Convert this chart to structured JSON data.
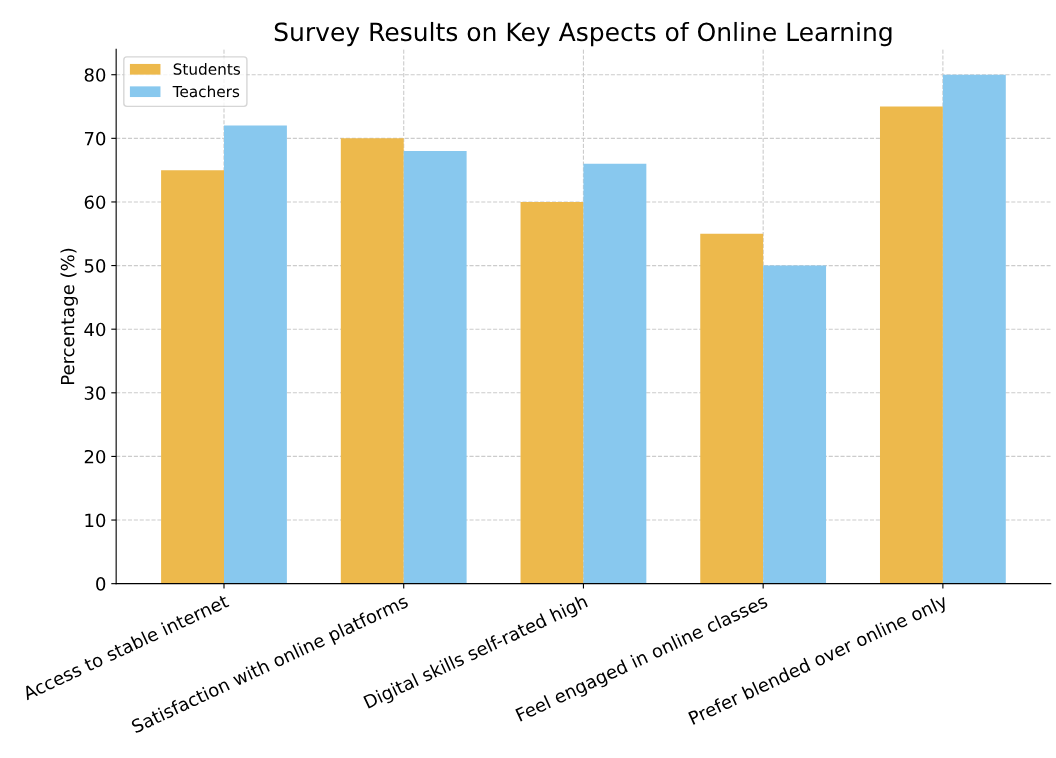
{
  "chart_data": {
    "type": "bar",
    "title": "Survey Results on Key Aspects of Online Learning",
    "ylabel": "Percentage (%)",
    "categories": [
      "Access to stable internet",
      "Satisfaction with online platforms",
      "Digital skills self-rated high",
      "Feel engaged in online classes",
      "Prefer blended over online only"
    ],
    "series": [
      {
        "name": "Students",
        "color": "#edb94c",
        "values": [
          65,
          70,
          60,
          55,
          75
        ]
      },
      {
        "name": "Teachers",
        "color": "#88c8ee",
        "values": [
          72,
          68,
          66,
          50,
          80
        ]
      }
    ],
    "ylim": [
      0,
      84
    ],
    "yticks": [
      0,
      10,
      20,
      30,
      40,
      50,
      60,
      70,
      80
    ],
    "grid": true,
    "legend": "top left"
  }
}
